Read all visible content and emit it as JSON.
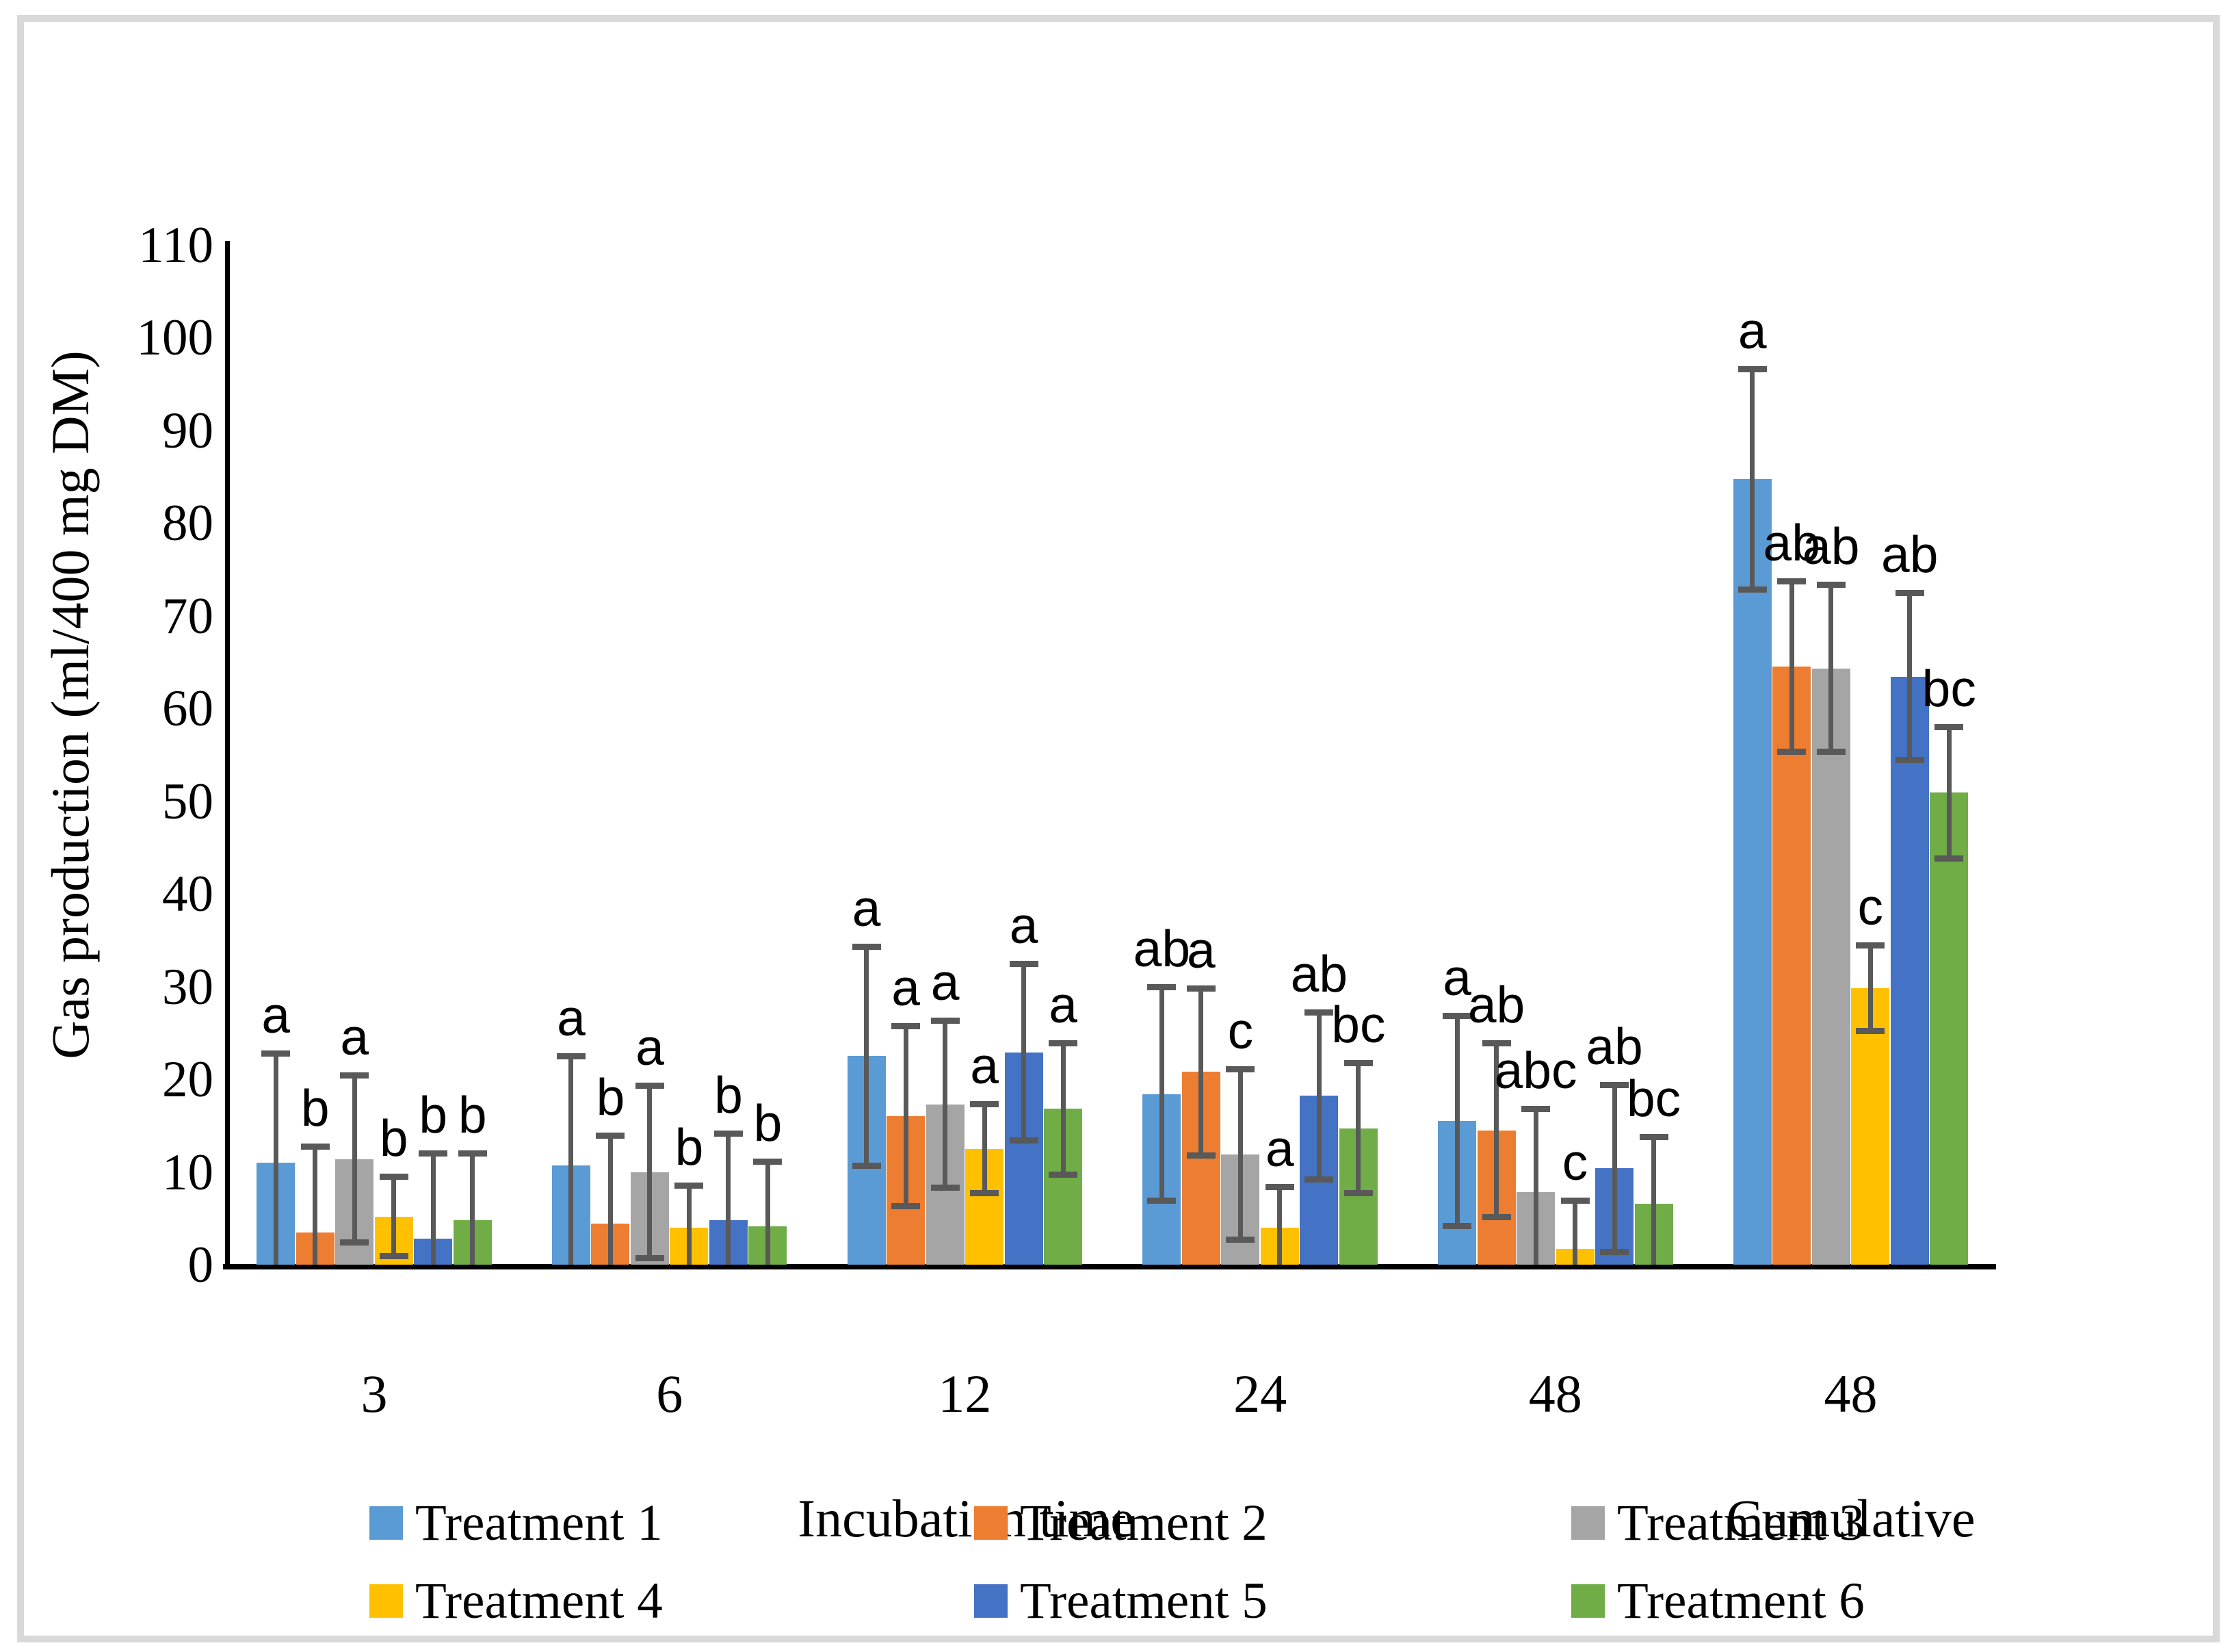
{
  "figure": {
    "background_color": "#ffffff",
    "frame_color": "#d9d9d9"
  },
  "chart_data": {
    "type": "bar",
    "title": "",
    "xlabel": "Incubation time",
    "ylabel": "Gas production (ml/400 mg DM)",
    "ylim": [
      0,
      110
    ],
    "ytick_step": 10,
    "grid": false,
    "legend_position": "bottom",
    "axis_color": "#000000",
    "error_bar_color": "#595959",
    "categories": [
      {
        "line1": "3",
        "line2": ""
      },
      {
        "line1": "6",
        "line2": ""
      },
      {
        "line1": "12",
        "line2": ""
      },
      {
        "line1": "24",
        "line2": ""
      },
      {
        "line1": "48",
        "line2": ""
      },
      {
        "line1": "48",
        "line2": "Cumulative"
      }
    ],
    "series": [
      {
        "name": "Treatment 1",
        "color": "#5b9bd5",
        "values": [
          11.0,
          10.7,
          22.5,
          18.4,
          15.5,
          84.7
        ],
        "sd": [
          11.8,
          11.8,
          11.8,
          11.5,
          11.3,
          11.9
        ],
        "letters": [
          "a",
          "a",
          "a",
          "ab",
          "a",
          "a"
        ]
      },
      {
        "name": "Treatment 2",
        "color": "#ed7d31",
        "values": [
          3.5,
          4.4,
          16.0,
          20.8,
          14.5,
          64.5
        ],
        "sd": [
          9.2,
          9.5,
          9.7,
          9.0,
          9.4,
          9.2
        ],
        "letters": [
          "b",
          "b",
          "a",
          "a",
          "ab",
          "ab"
        ]
      },
      {
        "name": "Treatment 3",
        "color": "#a5a5a5",
        "values": [
          11.4,
          10.0,
          17.3,
          11.9,
          7.8,
          64.3
        ],
        "sd": [
          9.0,
          9.3,
          9.0,
          9.2,
          9.0,
          9.0
        ],
        "letters": [
          "a",
          "a",
          "a",
          "c",
          "abc",
          "ab"
        ]
      },
      {
        "name": "Treatment 4",
        "color": "#ffc000",
        "values": [
          5.2,
          4.0,
          12.5,
          4.0,
          1.7,
          29.8
        ],
        "sd": [
          4.3,
          4.5,
          4.8,
          4.4,
          5.2,
          4.6
        ],
        "letters": [
          "b",
          "b",
          "a",
          "a",
          "c",
          "c"
        ]
      },
      {
        "name": "Treatment 5",
        "color": "#4472c4",
        "values": [
          2.8,
          4.8,
          22.9,
          18.2,
          10.4,
          63.4
        ],
        "sd": [
          9.2,
          9.3,
          9.5,
          9.0,
          9.0,
          9.0
        ],
        "letters": [
          "b",
          "b",
          "a",
          "ab",
          "ab",
          "ab"
        ]
      },
      {
        "name": "Treatment 6",
        "color": "#70ad47",
        "values": [
          4.8,
          4.1,
          16.8,
          14.7,
          6.6,
          50.9
        ],
        "sd": [
          7.2,
          7.0,
          7.1,
          7.0,
          7.2,
          7.1
        ],
        "letters": [
          "b",
          "b",
          "a",
          "bc",
          "bc",
          "bc"
        ]
      }
    ]
  }
}
